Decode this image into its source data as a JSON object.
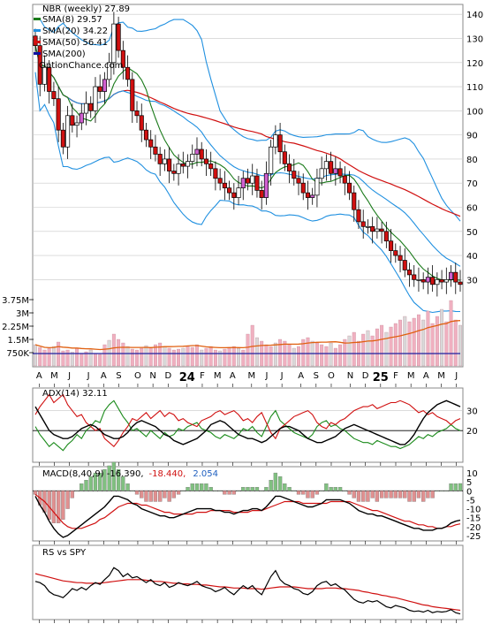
{
  "chart_data": {
    "type": "line",
    "symbol": "NBR",
    "period": "weekly",
    "title": "NBR (weekly) 27.89",
    "watermark": "OptionChance.com",
    "main_panel": {
      "series_type": "candlestick",
      "ylim": [
        25,
        143
      ],
      "y_ticks": [
        30,
        40,
        50,
        60,
        70,
        80,
        90,
        100,
        110,
        120,
        130,
        140
      ],
      "legend": [
        {
          "label": "NBR (weekly) 27.89",
          "color": "#000000"
        },
        {
          "label": "SMA(8) 29.57",
          "color": "#1a7a1a"
        },
        {
          "label": "SMA(20) 34.22",
          "color": "#2090e0"
        },
        {
          "label": "SMA(50) 56.41",
          "color": "#d01010"
        },
        {
          "label": "SMA(200)",
          "color": "#1010a0"
        }
      ],
      "closes": [
        127,
        111,
        118,
        108,
        105,
        92,
        85,
        98,
        94,
        95,
        99,
        103,
        100,
        110,
        108,
        113,
        120,
        136,
        125,
        118,
        113,
        100,
        98,
        92,
        88,
        85,
        82,
        78,
        80,
        75,
        74,
        78,
        77,
        79,
        82,
        84,
        80,
        78,
        76,
        72,
        70,
        68,
        66,
        64,
        68,
        72,
        70,
        73,
        67,
        64,
        74,
        85,
        90,
        83,
        78,
        75,
        72,
        70,
        66,
        64,
        65,
        72,
        76,
        79,
        74,
        76,
        73,
        70,
        66,
        59,
        54,
        52,
        52,
        50,
        51,
        50,
        46,
        42,
        40,
        38,
        34,
        32,
        30,
        30,
        29,
        31,
        28,
        30,
        29,
        30,
        33,
        29,
        28
      ]
    },
    "volume_panel": {
      "y_tick_labels": [
        "3.75M",
        "3M",
        "2.25M",
        "1.5M",
        "750K"
      ],
      "y_tick_values": [
        3750000,
        3000000,
        2250000,
        1500000,
        750000
      ],
      "ylim": [
        0,
        4200000
      ],
      "avg_line_color": "#e06010",
      "level_line_color": "#2020a0",
      "values_k": [
        1200,
        1050,
        900,
        980,
        1100,
        1350,
        850,
        900,
        780,
        1000,
        720,
        800,
        900,
        700,
        650,
        1200,
        1450,
        1800,
        1500,
        1300,
        1100,
        950,
        900,
        1000,
        1150,
        1050,
        1200,
        1300,
        1100,
        1000,
        900,
        950,
        1000,
        1100,
        1050,
        1200,
        900,
        1000,
        1100,
        900,
        850,
        950,
        1050,
        1100,
        1000,
        900,
        1800,
        2300,
        1600,
        1400,
        1200,
        1100,
        1300,
        1500,
        1400,
        1200,
        1000,
        1100,
        1500,
        1600,
        1400,
        1300,
        1200,
        1100,
        1300,
        1000,
        1200,
        1500,
        1700,
        1900,
        1400,
        1800,
        2000,
        1700,
        2100,
        2300,
        1900,
        2200,
        2400,
        2600,
        2800,
        2500,
        2700,
        2900,
        2600,
        3100,
        2400,
        2800,
        3200,
        2500,
        3700,
        2600,
        2300
      ]
    },
    "adx_panel": {
      "label": "ADX(14) 32.11",
      "y_ticks": [
        20,
        30
      ],
      "ylim": [
        5,
        40
      ],
      "adx": [
        32,
        28,
        24,
        20,
        18,
        17,
        16,
        16,
        17,
        19,
        21,
        22,
        23,
        22,
        20,
        18,
        17,
        16,
        16,
        17,
        19,
        22,
        24,
        25,
        24,
        23,
        22,
        20,
        18,
        17,
        15,
        14,
        13,
        14,
        15,
        16,
        18,
        20,
        23,
        24,
        25,
        24,
        22,
        20,
        18,
        17,
        16,
        16,
        15,
        14,
        15,
        17,
        19,
        21,
        22,
        22,
        21,
        20,
        18,
        16,
        15,
        14,
        14,
        15,
        16,
        17,
        19,
        21,
        22,
        23,
        22,
        21,
        20,
        19,
        18,
        17,
        16,
        15,
        14,
        13,
        13,
        15,
        18,
        22,
        26,
        29,
        31,
        33,
        34,
        35,
        34,
        33,
        32
      ],
      "plus_di": [
        22,
        18,
        15,
        12,
        14,
        12,
        10,
        13,
        15,
        18,
        16,
        20,
        22,
        25,
        24,
        30,
        33,
        35,
        31,
        27,
        24,
        20,
        21,
        19,
        17,
        20,
        18,
        16,
        19,
        17,
        18,
        21,
        20,
        22,
        23,
        24,
        21,
        20,
        19,
        17,
        16,
        18,
        17,
        16,
        18,
        21,
        20,
        22,
        19,
        17,
        22,
        27,
        30,
        25,
        23,
        21,
        19,
        18,
        17,
        16,
        18,
        22,
        24,
        25,
        22,
        23,
        21,
        20,
        18,
        16,
        15,
        14,
        14,
        13,
        15,
        14,
        13,
        12,
        12,
        11,
        12,
        13,
        15,
        17,
        16,
        18,
        17,
        19,
        20,
        21,
        23,
        21,
        20
      ],
      "minus_di": [
        28,
        32,
        35,
        38,
        34,
        36,
        38,
        33,
        30,
        27,
        28,
        24,
        22,
        20,
        21,
        16,
        14,
        12,
        15,
        19,
        22,
        26,
        25,
        27,
        29,
        26,
        28,
        30,
        27,
        29,
        28,
        25,
        26,
        24,
        23,
        22,
        25,
        26,
        27,
        29,
        30,
        28,
        29,
        30,
        28,
        25,
        26,
        24,
        27,
        29,
        24,
        19,
        16,
        21,
        23,
        25,
        27,
        28,
        29,
        30,
        28,
        24,
        22,
        21,
        24,
        23,
        25,
        26,
        28,
        30,
        31,
        32,
        32,
        33,
        31,
        32,
        33,
        34,
        34,
        35,
        34,
        33,
        31,
        29,
        30,
        28,
        29,
        27,
        26,
        25,
        23,
        25,
        26
      ]
    },
    "macd_panel": {
      "label": "MACD(8,40,9) -16.390,",
      "signal_text": "-18.440,",
      "hist_text": "2.054",
      "y_ticks": [
        10,
        5,
        0,
        -5,
        -10,
        -15,
        -20,
        -25
      ],
      "ylim": [
        -27,
        12
      ],
      "macd": [
        -3,
        -8,
        -12,
        -17,
        -21,
        -24,
        -26,
        -25,
        -23,
        -21,
        -19,
        -17,
        -15,
        -13,
        -11,
        -9,
        -6,
        -3,
        -3,
        -4,
        -5,
        -7,
        -8,
        -10,
        -11,
        -12,
        -13,
        -14,
        -14,
        -15,
        -15,
        -14,
        -13,
        -12,
        -11,
        -10,
        -10,
        -10,
        -10,
        -11,
        -11,
        -12,
        -12,
        -13,
        -12,
        -11,
        -11,
        -10,
        -10,
        -11,
        -9,
        -6,
        -3,
        -3,
        -4,
        -5,
        -6,
        -7,
        -8,
        -9,
        -9,
        -8,
        -7,
        -5,
        -5,
        -5,
        -5,
        -6,
        -7,
        -9,
        -11,
        -12,
        -13,
        -13,
        -14,
        -14,
        -15,
        -16,
        -17,
        -18,
        -19,
        -20,
        -21,
        -21,
        -22,
        -22,
        -22,
        -21,
        -21,
        -20,
        -18,
        -17,
        -16.39
      ],
      "signal": [
        -2,
        -4,
        -6,
        -9,
        -12,
        -15,
        -18,
        -20,
        -21,
        -21,
        -21,
        -20,
        -19,
        -18,
        -16,
        -15,
        -13,
        -11,
        -9,
        -8,
        -7,
        -7,
        -7,
        -8,
        -8,
        -9,
        -10,
        -11,
        -12,
        -12,
        -13,
        -13,
        -13,
        -13,
        -13,
        -12,
        -12,
        -12,
        -11,
        -11,
        -11,
        -11,
        -11,
        -12,
        -12,
        -12,
        -12,
        -11,
        -11,
        -11,
        -10,
        -9,
        -8,
        -7,
        -6,
        -6,
        -6,
        -6,
        -7,
        -7,
        -7,
        -7,
        -7,
        -7,
        -6,
        -6,
        -6,
        -6,
        -6,
        -7,
        -8,
        -9,
        -10,
        -11,
        -11,
        -12,
        -13,
        -14,
        -15,
        -16,
        -17,
        -17,
        -18,
        -19,
        -19,
        -20,
        -20,
        -21,
        -21,
        -20,
        -20,
        -19,
        -18.44
      ]
    },
    "rs_panel": {
      "label": "RS vs SPY",
      "ylim": [
        0,
        100
      ],
      "rs": [
        62,
        60,
        55,
        45,
        40,
        38,
        35,
        42,
        50,
        47,
        52,
        48,
        55,
        60,
        57,
        65,
        72,
        85,
        80,
        70,
        75,
        68,
        70,
        65,
        60,
        65,
        58,
        55,
        60,
        52,
        55,
        60,
        57,
        55,
        58,
        62,
        55,
        52,
        50,
        45,
        48,
        52,
        45,
        40,
        48,
        55,
        50,
        55,
        46,
        40,
        55,
        70,
        80,
        65,
        58,
        55,
        50,
        48,
        42,
        40,
        45,
        55,
        60,
        62,
        55,
        58,
        52,
        48,
        40,
        32,
        28,
        26,
        30,
        28,
        30,
        25,
        20,
        18,
        22,
        20,
        18,
        14,
        12,
        13,
        11,
        14,
        10,
        12,
        11,
        12,
        15,
        10,
        8
      ],
      "rs_ma": [
        75,
        73,
        71,
        69,
        67,
        65,
        63,
        62,
        61,
        60,
        60,
        59,
        59,
        59,
        59,
        60,
        61,
        62,
        63,
        64,
        65,
        65,
        65,
        65,
        64,
        63,
        62,
        62,
        61,
        60,
        59,
        59,
        58,
        58,
        57,
        57,
        56,
        56,
        55,
        54,
        53,
        53,
        52,
        51,
        51,
        51,
        50,
        50,
        50,
        49,
        50,
        51,
        52,
        53,
        53,
        53,
        53,
        52,
        51,
        50,
        50,
        50,
        50,
        51,
        51,
        51,
        50,
        50,
        49,
        48,
        47,
        45,
        44,
        42,
        41,
        39,
        38,
        36,
        35,
        33,
        31,
        29,
        27,
        25,
        23,
        22,
        20,
        19,
        18,
        17,
        16,
        15,
        14
      ]
    },
    "x_axis": {
      "labels": [
        "A",
        "M",
        "J",
        "J",
        "A",
        "S",
        "O",
        "N",
        "D",
        "24",
        "F",
        "M",
        "A",
        "M",
        "J",
        "J",
        "A",
        "S",
        "O",
        "N",
        "D",
        "25",
        "F",
        "M",
        "A",
        "M",
        "J"
      ],
      "bold": [
        "24",
        "25"
      ],
      "label_week_index": [
        1,
        5,
        9,
        14,
        18,
        22,
        27,
        31,
        35,
        40,
        44,
        48,
        52,
        57,
        61,
        65,
        70,
        74,
        78,
        83,
        87,
        91,
        95,
        99,
        103,
        107,
        111
      ]
    },
    "grid": true,
    "colors": {
      "candle_up": "#ffffff",
      "candle_down": "#d01010",
      "candle_up_alt": "#d060d0",
      "volume_up": "#f0b0c0",
      "volume_flat": "#d8d8d8",
      "bb_inner": "#2090e0",
      "bb_highlight": "#e0e020",
      "grid": "#c8c8c8"
    }
  }
}
